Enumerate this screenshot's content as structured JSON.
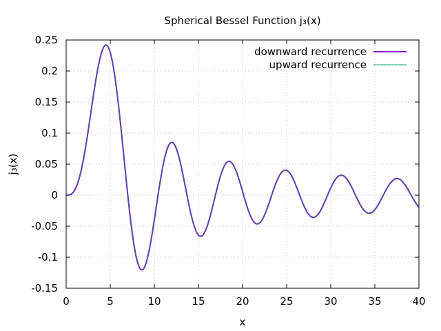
{
  "chart_data": {
    "type": "line",
    "title": "Spherical Bessel Function j₃(x)",
    "xlabel": "x",
    "ylabel": "j₃(x)",
    "xlim": [
      0,
      40
    ],
    "ylim": [
      -0.15,
      0.25
    ],
    "xticks": [
      0,
      5,
      10,
      15,
      20,
      25,
      30,
      35,
      40
    ],
    "yticks": [
      -0.15,
      -0.1,
      -0.05,
      0,
      0.05,
      0.1,
      0.15,
      0.2,
      0.25
    ],
    "xtick_labels": [
      "0",
      "5",
      "10",
      "15",
      "20",
      "25",
      "30",
      "35",
      "40"
    ],
    "ytick_labels": [
      "-0.15",
      "-0.1",
      "-0.05",
      "0",
      "0.05",
      "0.1",
      "0.15",
      "0.2",
      "0.25"
    ],
    "grid": true,
    "legend_position": "top-right",
    "x_range": [
      0,
      40
    ],
    "sample_step": 0.05,
    "series": [
      {
        "name": "downward recurrence",
        "color": "#9400d3",
        "function": "spherical_bessel_j3"
      },
      {
        "name": "upward recurrence",
        "color": "#009e73",
        "function": "spherical_bessel_j3"
      }
    ],
    "key_points": [
      {
        "x": 4.44,
        "y": 0.241
      },
      {
        "x": 8.55,
        "y": -0.121
      },
      {
        "x": 11.97,
        "y": 0.085
      },
      {
        "x": 15.2,
        "y": -0.066
      },
      {
        "x": 18.43,
        "y": 0.054
      },
      {
        "x": 21.6,
        "y": -0.046
      },
      {
        "x": 24.8,
        "y": 0.04
      },
      {
        "x": 28.0,
        "y": -0.036
      },
      {
        "x": 31.2,
        "y": 0.032
      },
      {
        "x": 34.4,
        "y": -0.029
      },
      {
        "x": 37.5,
        "y": 0.026
      },
      {
        "x": 40.0,
        "y": -0.019
      }
    ]
  }
}
